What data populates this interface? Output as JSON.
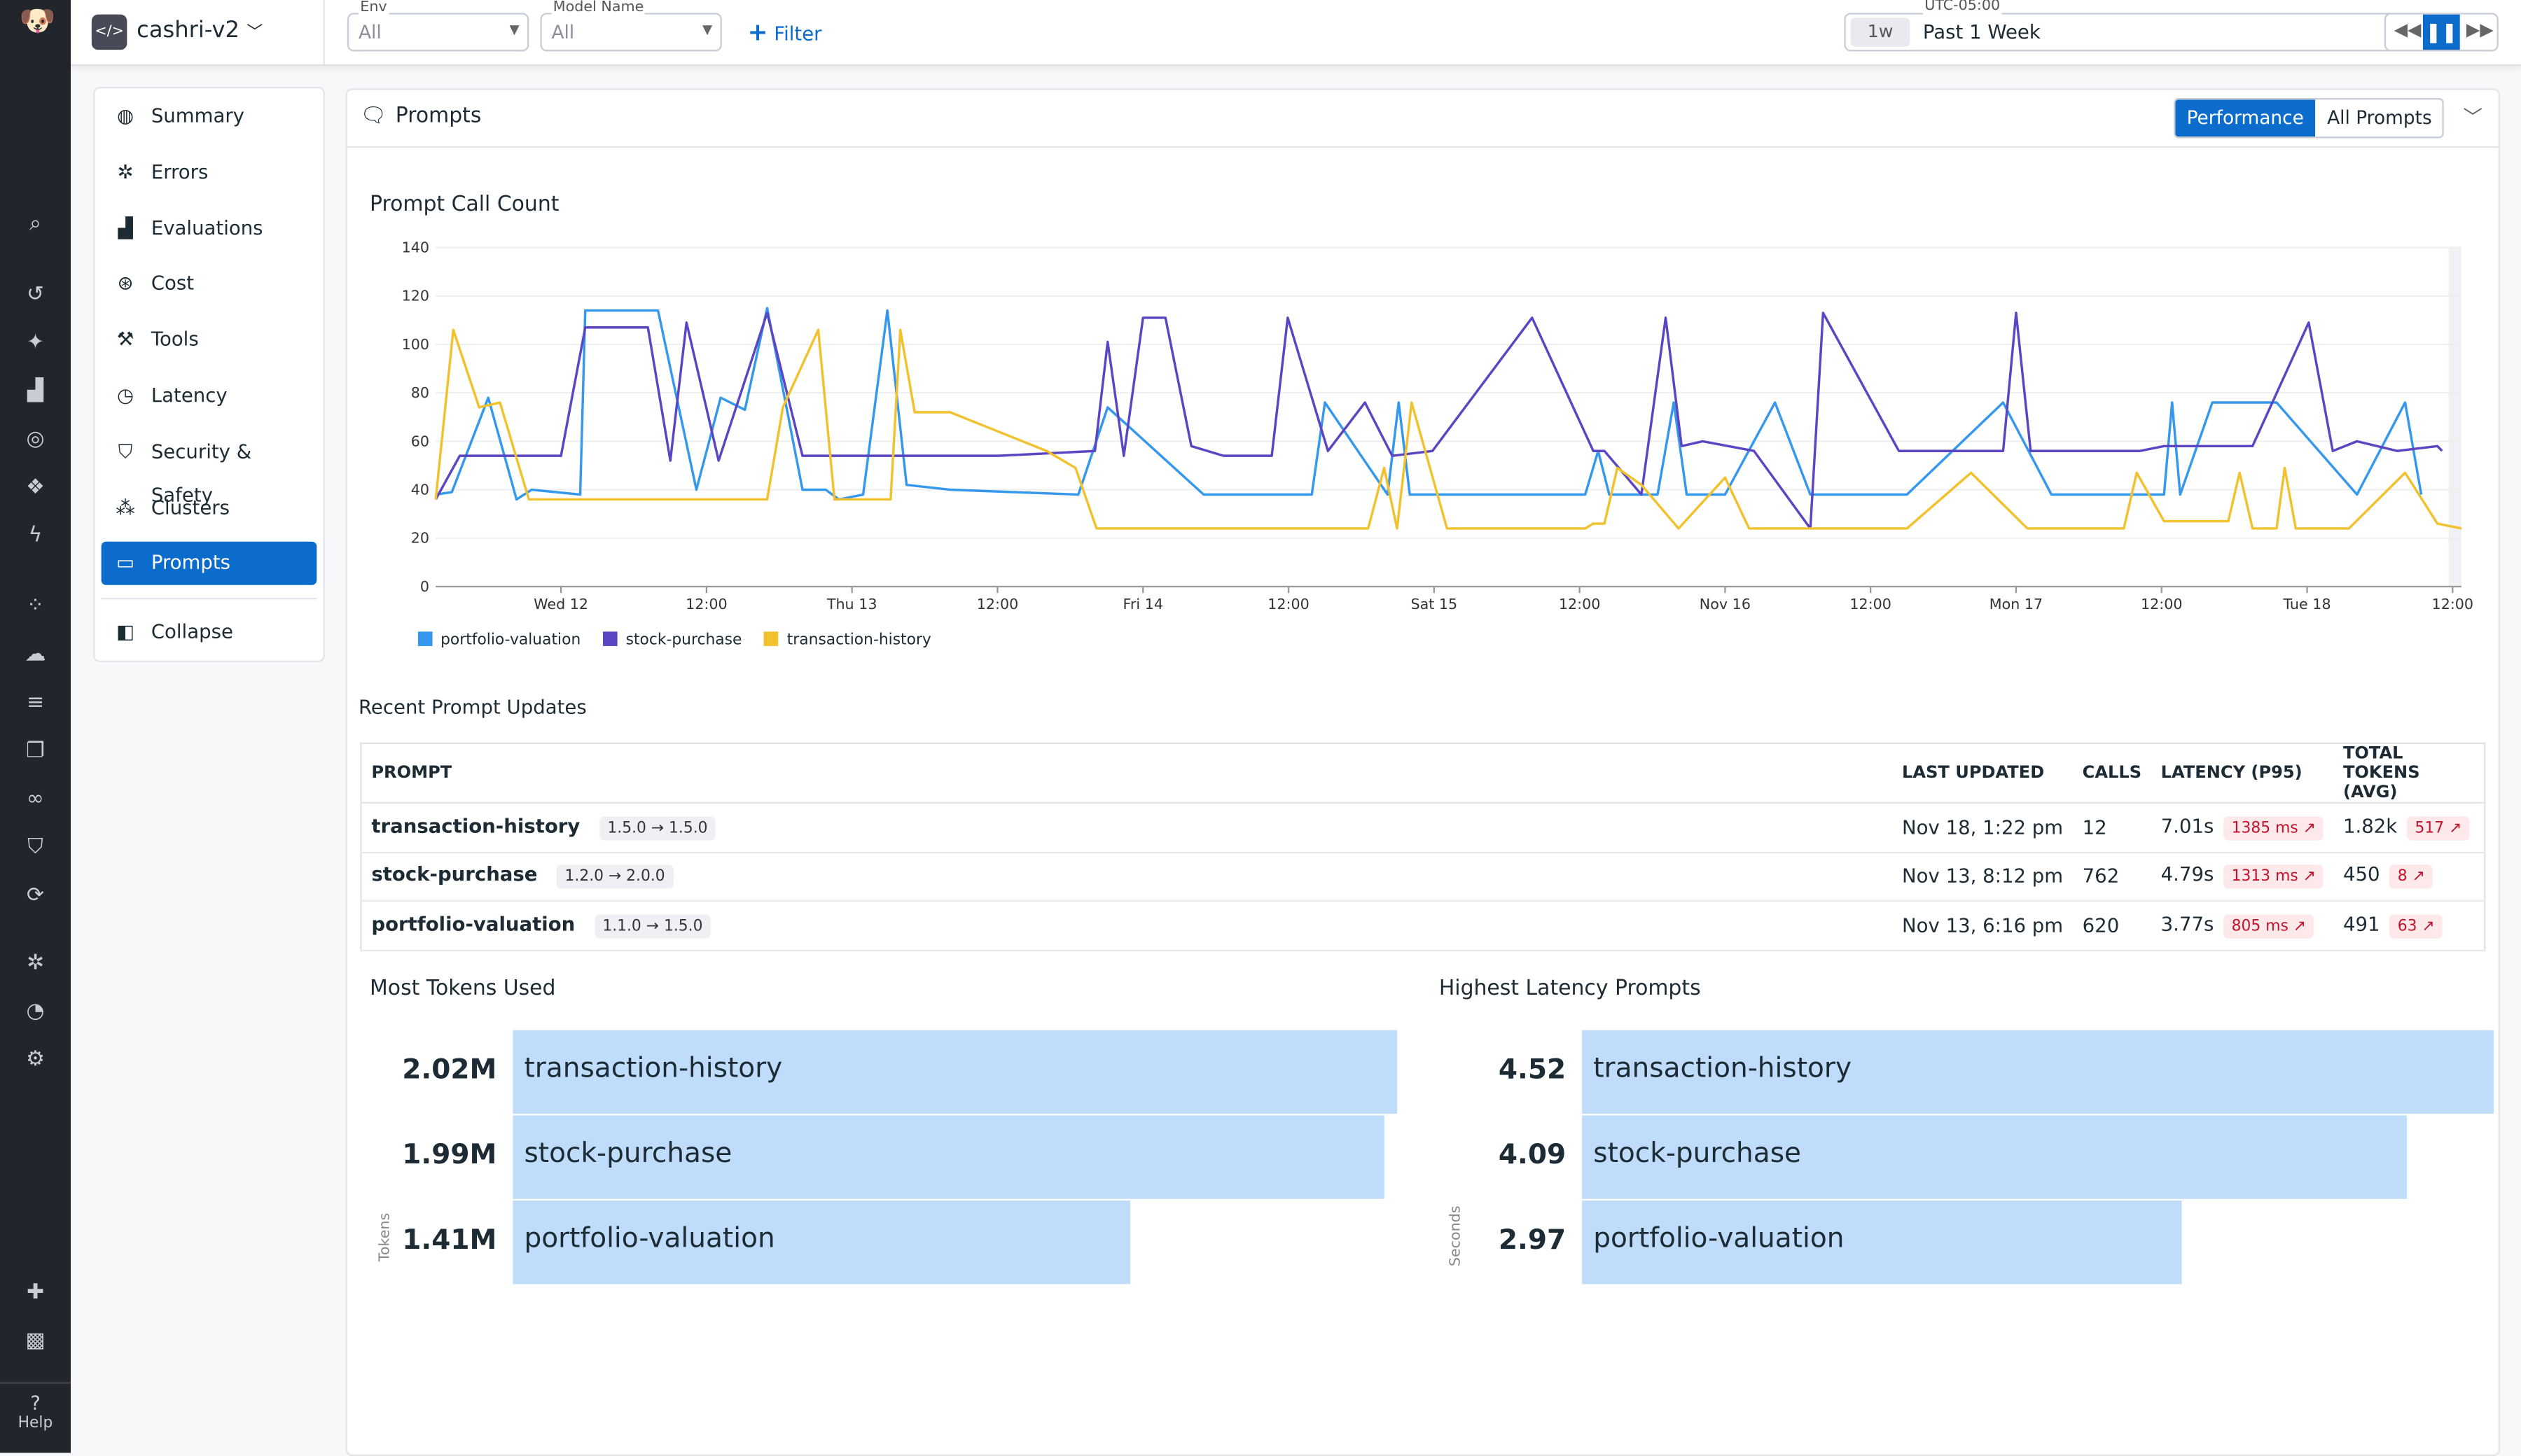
{
  "app": {
    "project": "cashri-v2",
    "help_label": "Help"
  },
  "filters": {
    "env": {
      "label": "Env",
      "value": "All"
    },
    "model": {
      "label": "Model Name",
      "value": "All"
    },
    "add_filter": "Filter"
  },
  "time": {
    "timezone": "UTC-05:00",
    "badge": "1w",
    "value": "Past 1 Week"
  },
  "rail_icons": [
    "search-icon",
    "history-icon",
    "sparkle-icon",
    "chart-icon",
    "target-icon",
    "layers-icon",
    "lightning-icon",
    "nodes-icon",
    "cloud-icon",
    "list-icon",
    "copy-icon",
    "link-icon",
    "shield-icon",
    "refresh-icon",
    "bug-icon",
    "gauge-icon",
    "settings-icon",
    "puzzle-icon",
    "avatar-icon"
  ],
  "nav": {
    "items": [
      {
        "label": "Summary",
        "icon": "globe-icon"
      },
      {
        "label": "Errors",
        "icon": "bug-icon"
      },
      {
        "label": "Evaluations",
        "icon": "chart-icon"
      },
      {
        "label": "Cost",
        "icon": "coin-icon"
      },
      {
        "label": "Tools",
        "icon": "wrench-icon"
      },
      {
        "label": "Latency",
        "icon": "clock-icon"
      },
      {
        "label": "Security & Safety",
        "icon": "shield-icon"
      },
      {
        "label": "Clusters",
        "icon": "clusters-icon"
      },
      {
        "label": "Prompts",
        "icon": "prompt-icon",
        "active": true
      }
    ],
    "collapse": "Collapse"
  },
  "panel": {
    "title": "Prompts",
    "tabs": [
      {
        "label": "Performance",
        "active": true
      },
      {
        "label": "All Prompts"
      }
    ]
  },
  "chart_data": [
    {
      "type": "line",
      "title": "Prompt Call Count",
      "ylim": [
        0,
        140
      ],
      "yticks": [
        0,
        20,
        40,
        60,
        80,
        100,
        120,
        140
      ],
      "xlim": [
        "Nov 11 13:40",
        "Nov 18 12:44"
      ],
      "xticks": [
        {
          "t": "Nov 12 00:00",
          "label": "Wed 12"
        },
        {
          "t": "Nov 12 12:00",
          "label": "12:00"
        },
        {
          "t": "Nov 13 00:00",
          "label": "Thu 13"
        },
        {
          "t": "Nov 13 12:00",
          "label": "12:00"
        },
        {
          "t": "Nov 14 00:00",
          "label": "Fri 14"
        },
        {
          "t": "Nov 14 12:00",
          "label": "12:00"
        },
        {
          "t": "Nov 15 00:00",
          "label": "Sat 15"
        },
        {
          "t": "Nov 15 12:00",
          "label": "12:00"
        },
        {
          "t": "Nov 16 00:00",
          "label": "Nov 16"
        },
        {
          "t": "Nov 16 12:00",
          "label": "12:00"
        },
        {
          "t": "Nov 17 00:00",
          "label": "Mon 17"
        },
        {
          "t": "Nov 17 12:00",
          "label": "12:00"
        },
        {
          "t": "Nov 18 00:00",
          "label": "Tue 18"
        },
        {
          "t": "Nov 18 12:00",
          "label": "12:00"
        }
      ],
      "grid": true,
      "legend": "bottom-left",
      "series": [
        {
          "name": "portfolio-valuation",
          "color": "#3598ec",
          "points": [
            [
              "Nov 11 13:40",
              38
            ],
            [
              "Nov 11 15:00",
              39
            ],
            [
              "Nov 11 18:00",
              78
            ],
            [
              "Nov 11 20:20",
              36
            ],
            [
              "Nov 11 21:35",
              40
            ],
            [
              "Nov 12 01:35",
              38
            ],
            [
              "Nov 12 02:00",
              114
            ],
            [
              "Nov 12 08:00",
              114
            ],
            [
              "Nov 12 11:10",
              40
            ],
            [
              "Nov 12 13:10",
              78
            ],
            [
              "Nov 12 15:10",
              73
            ],
            [
              "Nov 12 17:00",
              115
            ],
            [
              "Nov 12 19:55",
              40
            ],
            [
              "Nov 12 21:50",
              40
            ],
            [
              "Nov 12 22:55",
              36
            ],
            [
              "Nov 13 00:55",
              38
            ],
            [
              "Nov 13 02:55",
              114
            ],
            [
              "Nov 13 04:30",
              42
            ],
            [
              "Nov 13 08:05",
              40
            ],
            [
              "Nov 13 18:40",
              38
            ],
            [
              "Nov 13 21:05",
              74
            ],
            [
              "Nov 14 05:00",
              38
            ],
            [
              "Nov 14 13:55",
              38
            ],
            [
              "Nov 14 15:00",
              76
            ],
            [
              "Nov 14 20:10",
              38
            ],
            [
              "Nov 14 21:05",
              76
            ],
            [
              "Nov 14 22:00",
              38
            ],
            [
              "Nov 15 12:28",
              38
            ],
            [
              "Nov 15 13:32",
              56
            ],
            [
              "Nov 15 14:27",
              38
            ],
            [
              "Nov 15 18:26",
              38
            ],
            [
              "Nov 15 19:46",
              76
            ],
            [
              "Nov 15 20:50",
              38
            ],
            [
              "Nov 16 00:00",
              38
            ],
            [
              "Nov 16 04:07",
              76
            ],
            [
              "Nov 16 07:02",
              38
            ],
            [
              "Nov 16 15:00",
              38
            ],
            [
              "Nov 16 22:56",
              76
            ],
            [
              "Nov 17 02:55",
              38
            ],
            [
              "Nov 17 12:12",
              38
            ],
            [
              "Nov 17 12:52",
              76
            ],
            [
              "Nov 17 13:32",
              38
            ],
            [
              "Nov 17 16:11",
              76
            ],
            [
              "Nov 17 21:29",
              76
            ],
            [
              "Nov 18 04:07",
              38
            ],
            [
              "Nov 18 08:05",
              76
            ],
            [
              "Nov 18 09:25",
              38
            ]
          ]
        },
        {
          "name": "stock-purchase",
          "color": "#5b45c2",
          "points": [
            [
              "Nov 11 13:40",
              36
            ],
            [
              "Nov 11 15:39",
              54
            ],
            [
              "Nov 12 00:00",
              54
            ],
            [
              "Nov 12 02:00",
              107
            ],
            [
              "Nov 12 07:10",
              107
            ],
            [
              "Nov 12 09:01",
              52
            ],
            [
              "Nov 12 10:21",
              109
            ],
            [
              "Nov 12 13:00",
              52
            ],
            [
              "Nov 12 17:00",
              113
            ],
            [
              "Nov 12 19:55",
              54
            ],
            [
              "Nov 13 12:04",
              54
            ],
            [
              "Nov 13 20:02",
              56
            ],
            [
              "Nov 13 21:05",
              101
            ],
            [
              "Nov 13 22:25",
              54
            ],
            [
              "Nov 14 00:00",
              111
            ],
            [
              "Nov 14 01:51",
              111
            ],
            [
              "Nov 14 03:59",
              58
            ],
            [
              "Nov 14 06:38",
              54
            ],
            [
              "Nov 14 10:37",
              54
            ],
            [
              "Nov 14 11:56",
              111
            ],
            [
              "Nov 14 15:15",
              56
            ],
            [
              "Nov 14 18:18",
              76
            ],
            [
              "Nov 14 20:33",
              54
            ],
            [
              "Nov 14 23:52",
              56
            ],
            [
              "Nov 15 08:05",
              111
            ],
            [
              "Nov 15 13:08",
              56
            ],
            [
              "Nov 15 14:03",
              56
            ],
            [
              "Nov 15 17:06",
              38
            ],
            [
              "Nov 15 19:06",
              111
            ],
            [
              "Nov 15 20:25",
              58
            ],
            [
              "Nov 15 22:09",
              60
            ],
            [
              "Nov 16 02:23",
              56
            ],
            [
              "Nov 16 07:02",
              24
            ],
            [
              "Nov 16 08:05",
              113
            ],
            [
              "Nov 16 14:20",
              56
            ],
            [
              "Nov 16 22:56",
              56
            ],
            [
              "Nov 17 00:00",
              113
            ],
            [
              "Nov 17 01:12",
              56
            ],
            [
              "Nov 17 10:13",
              56
            ],
            [
              "Nov 17 12:12",
              58
            ],
            [
              "Nov 17 19:30",
              58
            ],
            [
              "Nov 18 00:08",
              109
            ],
            [
              "Nov 18 02:07",
              56
            ],
            [
              "Nov 18 04:07",
              60
            ],
            [
              "Nov 18 07:26",
              56
            ],
            [
              "Nov 18 10:45",
              58
            ],
            [
              "Nov 18 11:08",
              56
            ]
          ]
        },
        {
          "name": "transaction-history",
          "color": "#f2c12e",
          "points": [
            [
              "Nov 11 13:40",
              36
            ],
            [
              "Nov 11 15:07",
              106
            ],
            [
              "Nov 11 17:15",
              74
            ],
            [
              "Nov 11 18:58",
              76
            ],
            [
              "Nov 11 21:21",
              36
            ],
            [
              "Nov 12 17:00",
              36
            ],
            [
              "Nov 12 18:18",
              74
            ],
            [
              "Nov 12 21:13",
              106
            ],
            [
              "Nov 12 22:33",
              36
            ],
            [
              "Nov 13 03:11",
              36
            ],
            [
              "Nov 13 03:59",
              106
            ],
            [
              "Nov 13 05:10",
              72
            ],
            [
              "Nov 13 08:05",
              72
            ],
            [
              "Nov 13 16:03",
              56
            ],
            [
              "Nov 13 18:26",
              49
            ],
            [
              "Nov 13 20:10",
              24
            ],
            [
              "Nov 14 09:01",
              24
            ],
            [
              "Nov 14 18:34",
              24
            ],
            [
              "Nov 14 19:53",
              49
            ],
            [
              "Nov 14 20:57",
              24
            ],
            [
              "Nov 14 22:09",
              76
            ],
            [
              "Nov 15 01:04",
              24
            ],
            [
              "Nov 15 12:28",
              24
            ],
            [
              "Nov 15 13:08",
              26
            ],
            [
              "Nov 15 14:03",
              26
            ],
            [
              "Nov 15 15:07",
              49
            ],
            [
              "Nov 15 17:06",
              42
            ],
            [
              "Nov 15 20:10",
              24
            ],
            [
              "Nov 16 00:00",
              45
            ],
            [
              "Nov 16 01:59",
              24
            ],
            [
              "Nov 16 15:00",
              24
            ],
            [
              "Nov 16 20:17",
              47
            ],
            [
              "Nov 17 00:56",
              24
            ],
            [
              "Nov 17 08:53",
              24
            ],
            [
              "Nov 17 09:57",
              47
            ],
            [
              "Nov 17 12:12",
              27
            ],
            [
              "Nov 17 17:30",
              27
            ],
            [
              "Nov 17 18:26",
              47
            ],
            [
              "Nov 17 19:30",
              24
            ],
            [
              "Nov 17 21:29",
              24
            ],
            [
              "Nov 17 22:09",
              49
            ],
            [
              "Nov 17 23:04",
              24
            ],
            [
              "Nov 18 03:27",
              24
            ],
            [
              "Nov 18 08:05",
              47
            ],
            [
              "Nov 18 10:45",
              26
            ],
            [
              "Nov 18 12:44",
              24
            ]
          ]
        }
      ]
    },
    {
      "type": "bar",
      "title": "Most Tokens Used",
      "ylabel": "Tokens",
      "categories": [
        "transaction-history",
        "stock-purchase",
        "portfolio-valuation"
      ],
      "values": [
        2020000,
        1990000,
        1410000
      ],
      "labels": [
        "2.02M",
        "1.99M",
        "1.41M"
      ],
      "color": "#bfdcfb"
    },
    {
      "type": "bar",
      "title": "Highest Latency Prompts",
      "ylabel": "Seconds",
      "categories": [
        "transaction-history",
        "stock-purchase",
        "portfolio-valuation"
      ],
      "values": [
        4.52,
        4.09,
        2.97
      ],
      "labels": [
        "4.52",
        "4.09",
        "2.97"
      ],
      "color": "#bfdcfb"
    }
  ],
  "table": {
    "title": "Recent Prompt Updates",
    "headers": [
      "PROMPT",
      "LAST UPDATED",
      "CALLS",
      "LATENCY (P95)",
      "TOTAL TOKENS (AVG)"
    ],
    "rows": [
      {
        "prompt": "transaction-history",
        "version": "1.5.0 → 1.5.0",
        "updated": "Nov 18, 1:22 pm",
        "calls": "12",
        "latency": "7.01s",
        "latency_delta": "1385 ms ↗",
        "tokens": "1.82k",
        "tokens_delta": "517 ↗"
      },
      {
        "prompt": "stock-purchase",
        "version": "1.2.0 → 2.0.0",
        "updated": "Nov 13, 8:12 pm",
        "calls": "762",
        "latency": "4.79s",
        "latency_delta": "1313 ms ↗",
        "tokens": "450",
        "tokens_delta": "8 ↗"
      },
      {
        "prompt": "portfolio-valuation",
        "version": "1.1.0 → 1.5.0",
        "updated": "Nov 13, 6:16 pm",
        "calls": "620",
        "latency": "3.77s",
        "latency_delta": "805 ms ↗",
        "tokens": "491",
        "tokens_delta": "63 ↗"
      }
    ]
  },
  "colors": {
    "accent": "#0b6ccc",
    "rail": "#22252b",
    "delta_bg": "#fde8ea",
    "delta_fg": "#c0142c"
  }
}
